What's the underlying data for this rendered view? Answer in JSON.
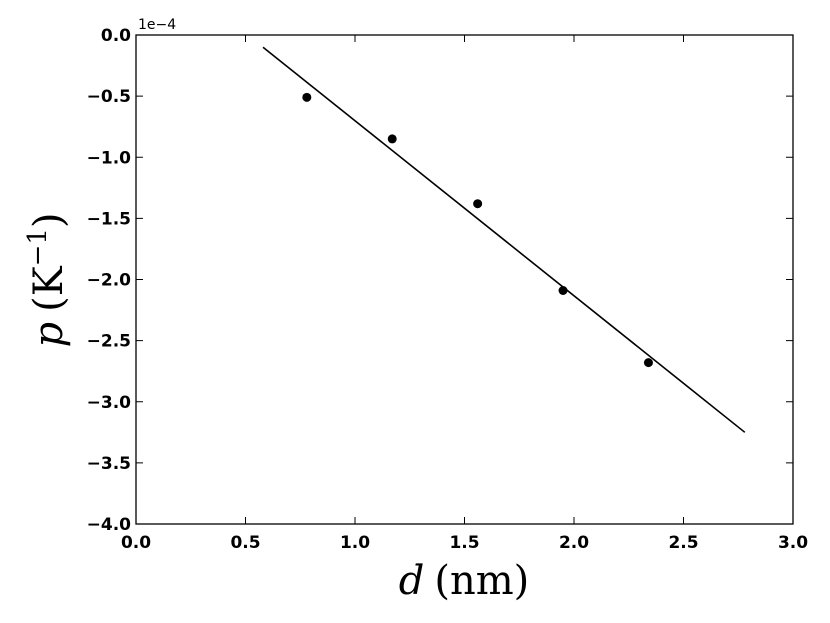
{
  "chart_data": {
    "type": "scatter",
    "title": "",
    "xlabel": {
      "symbol": "d",
      "unit": "(nm)"
    },
    "ylabel": {
      "symbol": "p",
      "unit": "(K",
      "unit_exp": "−1",
      "unit_close": ")"
    },
    "offset_text": "1e−4",
    "xlim": [
      0.0,
      3.0
    ],
    "ylim": [
      -4.0,
      0.0
    ],
    "grid": false,
    "x_ticks": [
      0.0,
      0.5,
      1.0,
      1.5,
      2.0,
      2.5,
      3.0
    ],
    "x_tick_labels": [
      "0.0",
      "0.5",
      "1.0",
      "1.5",
      "2.0",
      "2.5",
      "3.0"
    ],
    "y_ticks": [
      0.0,
      -0.5,
      -1.0,
      -1.5,
      -2.0,
      -2.5,
      -3.0,
      -3.5,
      -4.0
    ],
    "y_tick_labels": [
      "0.0",
      "−0.5",
      "−1.0",
      "−1.5",
      "−2.0",
      "−2.5",
      "−3.0",
      "−3.5",
      "−4.0"
    ],
    "series": [
      {
        "kind": "points",
        "x": [
          0.78,
          1.17,
          1.56,
          1.95,
          2.34
        ],
        "y": [
          -0.51,
          -0.85,
          -1.38,
          -2.09,
          -2.68
        ]
      },
      {
        "kind": "line",
        "x": [
          0.58,
          2.78
        ],
        "y": [
          -0.1,
          -3.25
        ]
      }
    ],
    "colors": {
      "marker": "#000000",
      "line": "#000000",
      "axes": "#000000"
    }
  }
}
